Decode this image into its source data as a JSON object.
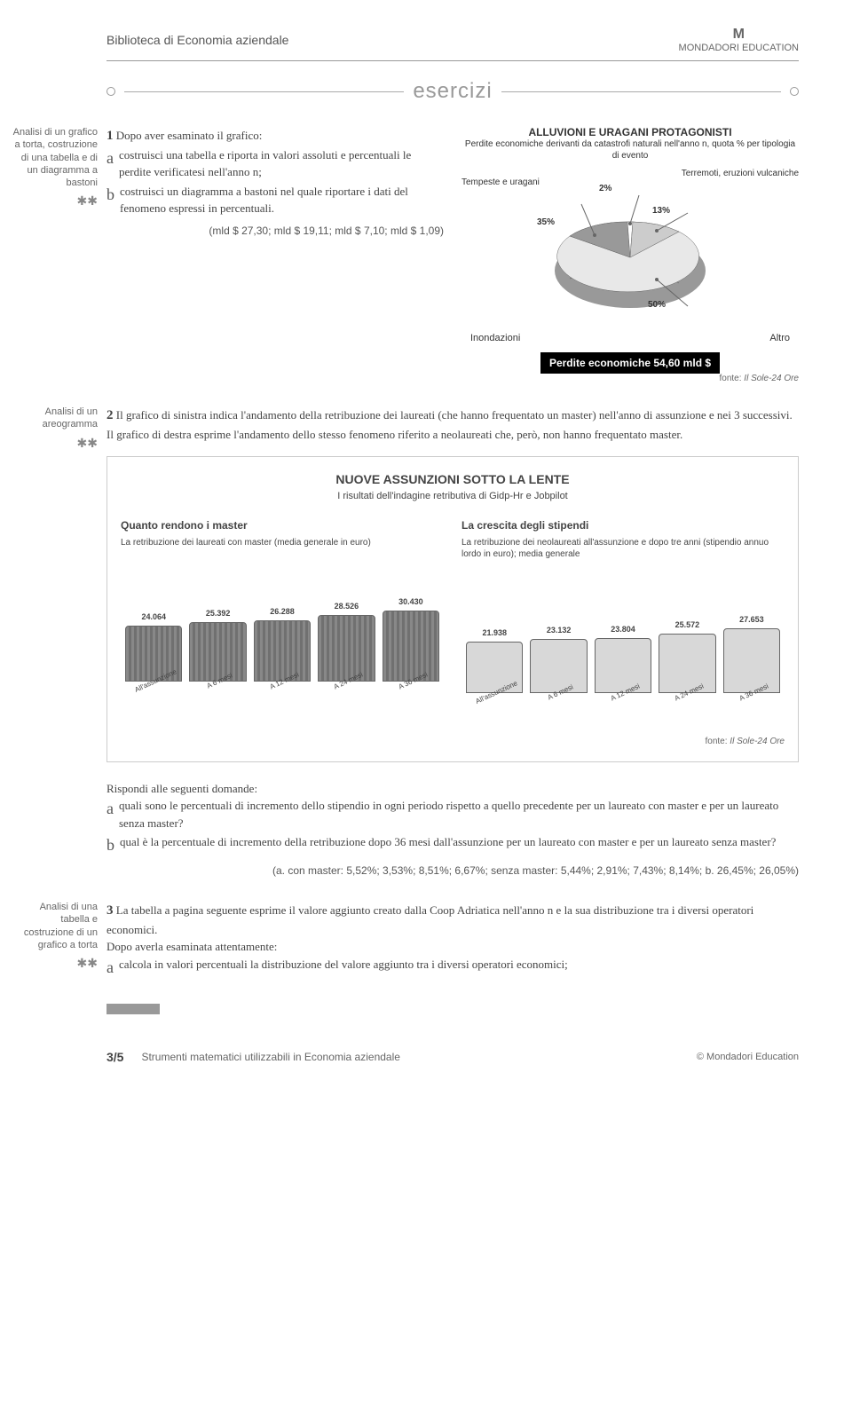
{
  "header": {
    "site_title": "Biblioteca di Economia aziendale",
    "brand_logo": "M",
    "brand_name": "MONDADORI EDUCATION"
  },
  "esercizi_label": "esercizi",
  "ex1": {
    "sidebar": "Analisi di un grafico a torta, costruzione di una tabella e di un diagramma a bastoni",
    "stars": "✱✱",
    "num": "1",
    "intro": "Dopo aver esaminato il grafico:",
    "a": "costruisci una tabella e riporta in valori assoluti e percentuali le perdite verificatesi nell'anno n;",
    "b": "costruisci un diagramma a bastoni nel quale riportare i dati del fenomeno espressi in percentuali.",
    "answer": "(mld $ 27,30; mld $ 19,11; mld $ 7,10; mld $ 1,09)"
  },
  "pie": {
    "title": "ALLUVIONI E URAGANI PROTAGONISTI",
    "subtitle": "Perdite economiche derivanti da catastrofi naturali nell'anno n, quota % per tipologia di evento",
    "labels": {
      "tempeste": "Tempeste e uragani",
      "terremoti": "Terremoti, eruzioni vulcaniche",
      "inondazioni": "Inondazioni",
      "altro": "Altro"
    },
    "slices": [
      {
        "label": "35%",
        "value": 35,
        "color": "#999999"
      },
      {
        "label": "2%",
        "value": 2,
        "color": "#ffffff"
      },
      {
        "label": "13%",
        "value": 13,
        "color": "#cccccc"
      },
      {
        "label": "50%",
        "value": 50,
        "color": "#e8e8e8"
      }
    ],
    "black_bar": "Perdite economiche 54,60 mld $",
    "source_label": "fonte:",
    "source": "Il Sole-24 Ore"
  },
  "ex2": {
    "sidebar": "Analisi di un areogramma",
    "stars": "✱✱",
    "num": "2",
    "text": "Il grafico di sinistra indica l'andamento della retribuzione dei laureati (che hanno frequentato un master) nell'anno di assunzione e nei 3 successivi. Il grafico di destra esprime l'andamento dello stesso fenomeno riferito a neolaureati che, però, non hanno frequentato master."
  },
  "bars": {
    "title": "NUOVE ASSUNZIONI SOTTO LA LENTE",
    "subtitle": "I risultati dell'indagine retributiva di Gidp-Hr e Jobpilot",
    "left": {
      "title": "Quanto rendono i master",
      "desc": "La retribuzione dei laureati con master (media generale in euro)",
      "categories": [
        "All'assunzione",
        "A 6 mesi",
        "A 12 mesi",
        "A 24 mesi",
        "A 36 mesi"
      ],
      "values": [
        "24.064",
        "25.392",
        "26.288",
        "28.526",
        "30.430"
      ],
      "heights": [
        63,
        67,
        69,
        75,
        80
      ],
      "color": "#808080",
      "stripe": true
    },
    "right": {
      "title": "La crescita degli stipendi",
      "desc": "La retribuzione dei neolaureati all'assunzione e dopo tre anni (stipendio annuo lordo in euro); media generale",
      "categories": [
        "All'assunzione",
        "A 6 mesi",
        "A 12 mesi",
        "A 24 mesi",
        "A 36 mesi"
      ],
      "values": [
        "21.938",
        "23.132",
        "23.804",
        "25.572",
        "27.653"
      ],
      "heights": [
        58,
        61,
        62,
        67,
        73
      ],
      "color": "#d8d8d8",
      "stripe": false
    },
    "source_label": "fonte:",
    "source": "Il Sole-24 Ore"
  },
  "questions": {
    "intro": "Rispondi alle seguenti domande:",
    "a": "quali sono le percentuali di incremento dello stipendio in ogni periodo rispetto a quello precedente per un laureato con master e per un laureato senza master?",
    "b": "qual è la percentuale di incremento della retribuzione dopo 36 mesi dall'assunzione per un laureato con master e per un laureato senza master?",
    "answer": "(a. con master: 5,52%; 3,53%; 8,51%; 6,67%; senza master: 5,44%; 2,91%; 7,43%; 8,14%; b. 26,45%; 26,05%)"
  },
  "ex3": {
    "sidebar": "Analisi di una tabella e costruzione di un grafico a torta",
    "stars": "✱✱",
    "num": "3",
    "intro": "La tabella a pagina seguente esprime il valore aggiunto creato dalla Coop Adriatica nell'anno n e la sua distribuzione tra i diversi operatori economici.",
    "intro2": "Dopo averla esaminata attentamente:",
    "a": "calcola in valori percentuali la distribuzione del valore aggiunto tra i diversi operatori economici;"
  },
  "footer": {
    "page": "3/5",
    "title": "Strumenti matematici utilizzabili in Economia aziendale",
    "brand": "© Mondadori Education"
  }
}
